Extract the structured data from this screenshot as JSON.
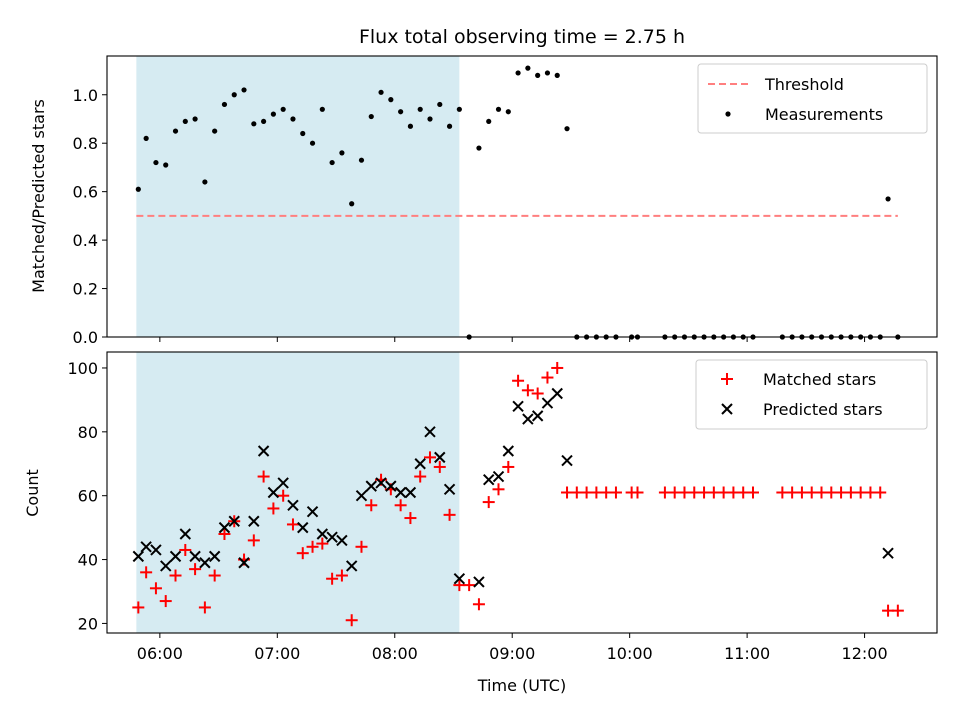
{
  "chart_data": [
    {
      "type": "scatter",
      "title": "Flux total observing time = 2.75 h",
      "xlabel": "",
      "ylabel": "Matched/Predicted stars",
      "ylim": [
        0,
        1.16
      ],
      "yticks": [
        0.0,
        0.2,
        0.4,
        0.6,
        0.8,
        1.0
      ],
      "ytick_labels": [
        "0.0",
        "0.2",
        "0.4",
        "0.6",
        "0.8",
        "1.0"
      ],
      "xlim": [
        "05:33",
        "12:37"
      ],
      "x_tick_labels_shown": false,
      "shaded_interval": {
        "start": "05:48",
        "end": "08:33",
        "color": "#add8e6"
      },
      "threshold": {
        "name": "Threshold",
        "value": 0.5,
        "x_start": "05:48",
        "x_end": "12:17",
        "color": "#ff7f7f",
        "style": "dashed"
      },
      "legend_position": "top-right",
      "series": [
        {
          "name": "Measurements",
          "marker": "dot",
          "color": "#000000",
          "points": [
            [
              "05:49",
              0.61
            ],
            [
              "05:53",
              0.82
            ],
            [
              "05:58",
              0.72
            ],
            [
              "06:03",
              0.71
            ],
            [
              "06:08",
              0.85
            ],
            [
              "06:13",
              0.89
            ],
            [
              "06:18",
              0.9
            ],
            [
              "06:23",
              0.64
            ],
            [
              "06:28",
              0.85
            ],
            [
              "06:33",
              0.96
            ],
            [
              "06:38",
              1.0
            ],
            [
              "06:43",
              1.02
            ],
            [
              "06:48",
              0.88
            ],
            [
              "06:53",
              0.89
            ],
            [
              "06:58",
              0.92
            ],
            [
              "07:03",
              0.94
            ],
            [
              "07:08",
              0.9
            ],
            [
              "07:13",
              0.84
            ],
            [
              "07:18",
              0.8
            ],
            [
              "07:23",
              0.94
            ],
            [
              "07:28",
              0.72
            ],
            [
              "07:33",
              0.76
            ],
            [
              "07:38",
              0.55
            ],
            [
              "07:43",
              0.73
            ],
            [
              "07:48",
              0.91
            ],
            [
              "07:53",
              1.01
            ],
            [
              "07:58",
              0.98
            ],
            [
              "08:03",
              0.93
            ],
            [
              "08:08",
              0.87
            ],
            [
              "08:13",
              0.94
            ],
            [
              "08:18",
              0.9
            ],
            [
              "08:23",
              0.96
            ],
            [
              "08:28",
              0.87
            ],
            [
              "08:33",
              0.94
            ],
            [
              "08:38",
              0.0
            ],
            [
              "08:43",
              0.78
            ],
            [
              "08:48",
              0.89
            ],
            [
              "08:53",
              0.94
            ],
            [
              "08:58",
              0.93
            ],
            [
              "09:03",
              1.09
            ],
            [
              "09:08",
              1.11
            ],
            [
              "09:13",
              1.08
            ],
            [
              "09:18",
              1.09
            ],
            [
              "09:23",
              1.08
            ],
            [
              "09:28",
              0.86
            ],
            [
              "09:33",
              0.0
            ],
            [
              "09:38",
              0.0
            ],
            [
              "09:43",
              0.0
            ],
            [
              "09:48",
              0.0
            ],
            [
              "09:53",
              0.0
            ],
            [
              "10:01",
              0.0
            ],
            [
              "10:04",
              0.0
            ],
            [
              "10:18",
              0.0
            ],
            [
              "10:23",
              0.0
            ],
            [
              "10:28",
              0.0
            ],
            [
              "10:33",
              0.0
            ],
            [
              "10:38",
              0.0
            ],
            [
              "10:43",
              0.0
            ],
            [
              "10:48",
              0.0
            ],
            [
              "10:53",
              0.0
            ],
            [
              "10:58",
              0.0
            ],
            [
              "11:03",
              0.0
            ],
            [
              "11:18",
              0.0
            ],
            [
              "11:23",
              0.0
            ],
            [
              "11:28",
              0.0
            ],
            [
              "11:33",
              0.0
            ],
            [
              "11:38",
              0.0
            ],
            [
              "11:43",
              0.0
            ],
            [
              "11:48",
              0.0
            ],
            [
              "11:53",
              0.0
            ],
            [
              "11:58",
              0.0
            ],
            [
              "12:03",
              0.0
            ],
            [
              "12:08",
              0.0
            ],
            [
              "12:12",
              0.57
            ],
            [
              "12:17",
              0.0
            ]
          ]
        }
      ]
    },
    {
      "type": "scatter",
      "title": "",
      "xlabel": "Time (UTC)",
      "ylabel": "Count",
      "ylim": [
        17,
        105
      ],
      "yticks": [
        20,
        40,
        60,
        80,
        100
      ],
      "ytick_labels": [
        "20",
        "40",
        "60",
        "80",
        "100"
      ],
      "xlim": [
        "05:33",
        "12:37"
      ],
      "xticks": [
        "06:00",
        "07:00",
        "08:00",
        "09:00",
        "10:00",
        "11:00",
        "12:00"
      ],
      "xtick_labels": [
        "06:00",
        "07:00",
        "08:00",
        "09:00",
        "10:00",
        "11:00",
        "12:00"
      ],
      "shaded_interval": {
        "start": "05:48",
        "end": "08:33",
        "color": "#add8e6"
      },
      "legend_position": "top-right",
      "series": [
        {
          "name": "Matched stars",
          "marker": "plus",
          "color": "#ff0000",
          "points": [
            [
              "05:49",
              25
            ],
            [
              "05:53",
              36
            ],
            [
              "05:58",
              31
            ],
            [
              "06:03",
              27
            ],
            [
              "06:08",
              35
            ],
            [
              "06:13",
              43
            ],
            [
              "06:18",
              37
            ],
            [
              "06:23",
              25
            ],
            [
              "06:28",
              35
            ],
            [
              "06:33",
              48
            ],
            [
              "06:38",
              52
            ],
            [
              "06:43",
              40
            ],
            [
              "06:48",
              46
            ],
            [
              "06:53",
              66
            ],
            [
              "06:58",
              56
            ],
            [
              "07:03",
              60
            ],
            [
              "07:08",
              51
            ],
            [
              "07:13",
              42
            ],
            [
              "07:18",
              44
            ],
            [
              "07:23",
              45
            ],
            [
              "07:28",
              34
            ],
            [
              "07:33",
              35
            ],
            [
              "07:38",
              21
            ],
            [
              "07:43",
              44
            ],
            [
              "07:48",
              57
            ],
            [
              "07:53",
              65
            ],
            [
              "07:58",
              62
            ],
            [
              "08:03",
              57
            ],
            [
              "08:08",
              53
            ],
            [
              "08:13",
              66
            ],
            [
              "08:18",
              72
            ],
            [
              "08:23",
              69
            ],
            [
              "08:28",
              54
            ],
            [
              "08:33",
              32
            ],
            [
              "08:38",
              32
            ],
            [
              "08:43",
              26
            ],
            [
              "08:48",
              58
            ],
            [
              "08:53",
              62
            ],
            [
              "08:58",
              69
            ],
            [
              "09:03",
              96
            ],
            [
              "09:08",
              93
            ],
            [
              "09:13",
              92
            ],
            [
              "09:18",
              97
            ],
            [
              "09:23",
              100
            ],
            [
              "09:28",
              61
            ],
            [
              "09:33",
              61
            ],
            [
              "09:38",
              61
            ],
            [
              "09:43",
              61
            ],
            [
              "09:48",
              61
            ],
            [
              "09:53",
              61
            ],
            [
              "10:01",
              61
            ],
            [
              "10:04",
              61
            ],
            [
              "10:18",
              61
            ],
            [
              "10:23",
              61
            ],
            [
              "10:28",
              61
            ],
            [
              "10:33",
              61
            ],
            [
              "10:38",
              61
            ],
            [
              "10:43",
              61
            ],
            [
              "10:48",
              61
            ],
            [
              "10:53",
              61
            ],
            [
              "10:58",
              61
            ],
            [
              "11:03",
              61
            ],
            [
              "11:18",
              61
            ],
            [
              "11:23",
              61
            ],
            [
              "11:28",
              61
            ],
            [
              "11:33",
              61
            ],
            [
              "11:38",
              61
            ],
            [
              "11:43",
              61
            ],
            [
              "11:48",
              61
            ],
            [
              "11:53",
              61
            ],
            [
              "11:58",
              61
            ],
            [
              "12:03",
              61
            ],
            [
              "12:08",
              61
            ],
            [
              "12:12",
              24
            ],
            [
              "12:17",
              24
            ]
          ]
        },
        {
          "name": "Predicted stars",
          "marker": "x",
          "color": "#000000",
          "points": [
            [
              "05:49",
              41
            ],
            [
              "05:53",
              44
            ],
            [
              "05:58",
              43
            ],
            [
              "06:03",
              38
            ],
            [
              "06:08",
              41
            ],
            [
              "06:13",
              48
            ],
            [
              "06:18",
              41
            ],
            [
              "06:23",
              39
            ],
            [
              "06:28",
              41
            ],
            [
              "06:33",
              50
            ],
            [
              "06:38",
              52
            ],
            [
              "06:43",
              39
            ],
            [
              "06:48",
              52
            ],
            [
              "06:53",
              74
            ],
            [
              "06:58",
              61
            ],
            [
              "07:03",
              64
            ],
            [
              "07:08",
              57
            ],
            [
              "07:13",
              50
            ],
            [
              "07:18",
              55
            ],
            [
              "07:23",
              48
            ],
            [
              "07:28",
              47
            ],
            [
              "07:33",
              46
            ],
            [
              "07:38",
              38
            ],
            [
              "07:43",
              60
            ],
            [
              "07:48",
              63
            ],
            [
              "07:53",
              64
            ],
            [
              "07:58",
              63
            ],
            [
              "08:03",
              61
            ],
            [
              "08:08",
              61
            ],
            [
              "08:13",
              70
            ],
            [
              "08:18",
              80
            ],
            [
              "08:23",
              72
            ],
            [
              "08:28",
              62
            ],
            [
              "08:33",
              34
            ],
            [
              "08:43",
              33
            ],
            [
              "08:48",
              65
            ],
            [
              "08:53",
              66
            ],
            [
              "08:58",
              74
            ],
            [
              "09:03",
              88
            ],
            [
              "09:08",
              84
            ],
            [
              "09:13",
              85
            ],
            [
              "09:18",
              89
            ],
            [
              "09:23",
              92
            ],
            [
              "09:28",
              71
            ],
            [
              "12:12",
              42
            ]
          ]
        }
      ]
    }
  ]
}
